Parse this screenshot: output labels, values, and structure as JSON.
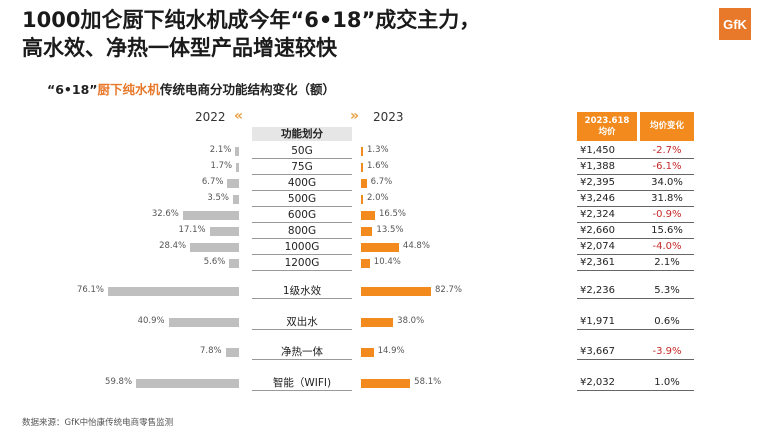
{
  "title_line1": "1000加仑厨下纯水机成今年“6•18”成交主力，",
  "title_line2": "高水效、净热一体型产品增速较快",
  "logo": "GfK",
  "subtitle_pre": "“6•18”",
  "subtitle_hl": "厨下纯水机",
  "subtitle_post": "传统电商分功能结构变化（额）",
  "footer": "数据来源：GfK中怡康传统电商零售监测",
  "chart_data": {
    "type": "bar",
    "left_year": "2022",
    "right_year": "2023",
    "category_header": "功能划分",
    "table_header_price_line1": "2023.618",
    "table_header_price_line2": "均价",
    "table_header_change": "均价变化",
    "colors": {
      "left": "#bfbfbf",
      "right": "#f28a1e",
      "negative": "#c62828"
    },
    "rows": [
      {
        "cat": "50G",
        "v2022": 2.1,
        "v2023": 1.3,
        "l2022": "2.1%",
        "l2023": "1.3%",
        "price": "¥1,450",
        "change": "-2.7%",
        "neg": true
      },
      {
        "cat": "75G",
        "v2022": 1.7,
        "v2023": 1.6,
        "l2022": "1.7%",
        "l2023": "1.6%",
        "price": "¥1,388",
        "change": "-6.1%",
        "neg": true
      },
      {
        "cat": "400G",
        "v2022": 6.7,
        "v2023": 6.7,
        "l2022": "6.7%",
        "l2023": "6.7%",
        "price": "¥2,395",
        "change": "34.0%",
        "neg": false
      },
      {
        "cat": "500G",
        "v2022": 3.5,
        "v2023": 2.0,
        "l2022": "3.5%",
        "l2023": "2.0%",
        "price": "¥3,246",
        "change": "31.8%",
        "neg": false
      },
      {
        "cat": "600G",
        "v2022": 32.6,
        "v2023": 16.5,
        "l2022": "32.6%",
        "l2023": "16.5%",
        "price": "¥2,324",
        "change": "-0.9%",
        "neg": true
      },
      {
        "cat": "800G",
        "v2022": 17.1,
        "v2023": 13.5,
        "l2022": "17.1%",
        "l2023": "13.5%",
        "price": "¥2,660",
        "change": "15.6%",
        "neg": false
      },
      {
        "cat": "1000G",
        "v2022": 28.4,
        "v2023": 44.8,
        "l2022": "28.4%",
        "l2023": "44.8%",
        "price": "¥2,074",
        "change": "-4.0%",
        "neg": true
      },
      {
        "cat": "1200G",
        "v2022": 5.6,
        "v2023": 10.4,
        "l2022": "5.6%",
        "l2023": "10.4%",
        "price": "¥2,361",
        "change": "2.1%",
        "neg": false
      },
      {
        "cat": "1级水效",
        "v2022": 76.1,
        "v2023": 82.7,
        "l2022": "76.1%",
        "l2023": "82.7%",
        "price": "¥2,236",
        "change": "5.3%",
        "neg": false
      },
      {
        "cat": "双出水",
        "v2022": 40.9,
        "v2023": 38.0,
        "l2022": "40.9%",
        "l2023": "38.0%",
        "price": "¥1,971",
        "change": "0.6%",
        "neg": false
      },
      {
        "cat": "净热一体",
        "v2022": 7.8,
        "v2023": 14.9,
        "l2022": "7.8%",
        "l2023": "14.9%",
        "price": "¥3,667",
        "change": "-3.9%",
        "neg": true
      },
      {
        "cat": "智能（WIFI)",
        "v2022": 59.8,
        "v2023": 58.1,
        "l2022": "59.8%",
        "l2023": "58.1%",
        "price": "¥2,032",
        "change": "1.0%",
        "neg": false
      }
    ]
  }
}
